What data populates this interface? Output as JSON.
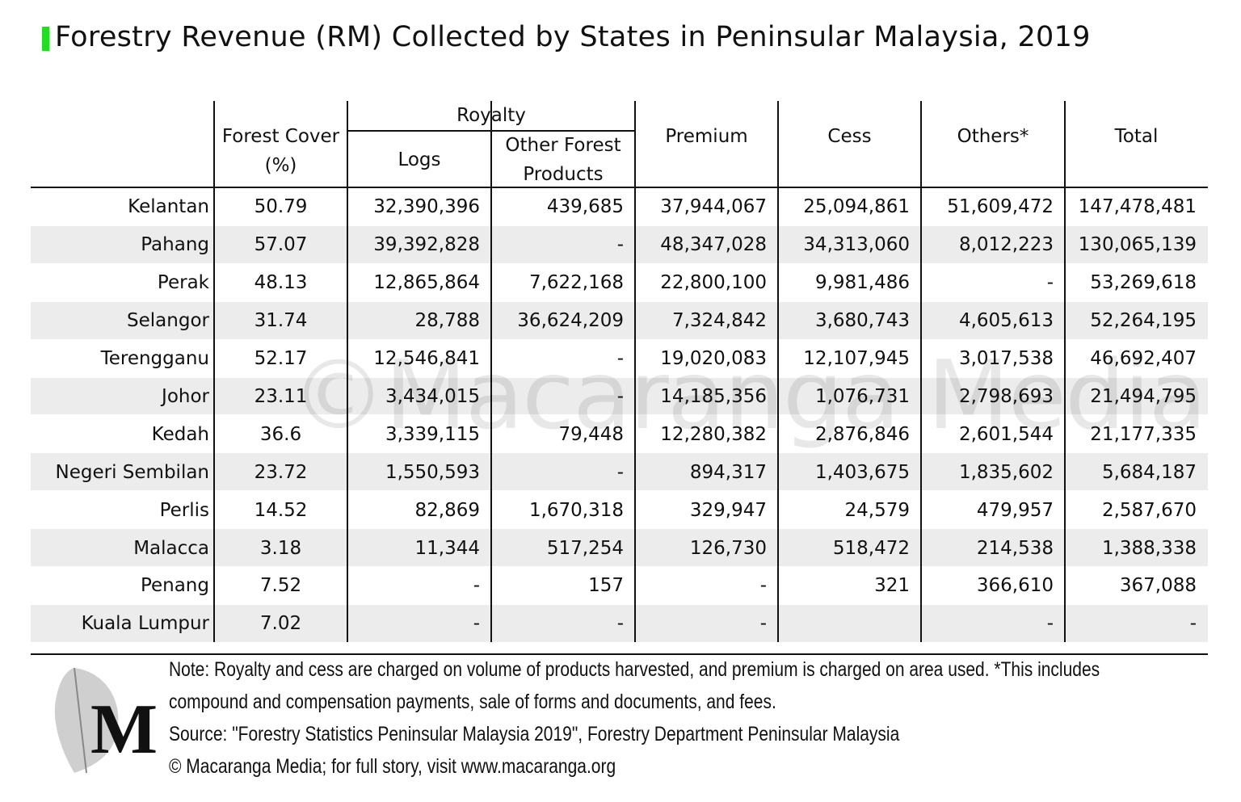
{
  "title": "Forestry Revenue (RM) Collected by States in Peninsular Malaysia, 2019",
  "table": {
    "group_header": "Royalty",
    "columns": [
      "Forest Cover (%)",
      "Logs",
      "Other Forest Products",
      "Premium",
      "Cess",
      "Others*",
      "Total"
    ],
    "rows": [
      [
        "Kelantan",
        "50.79",
        "32,390,396",
        "439,685",
        "37,944,067",
        "25,094,861",
        "51,609,472",
        "147,478,481"
      ],
      [
        "Pahang",
        "57.07",
        "39,392,828",
        "-",
        "48,347,028",
        "34,313,060",
        "8,012,223",
        "130,065,139"
      ],
      [
        "Perak",
        "48.13",
        "12,865,864",
        "7,622,168",
        "22,800,100",
        "9,981,486",
        "-",
        "53,269,618"
      ],
      [
        "Selangor",
        "31.74",
        "28,788",
        "36,624,209",
        "7,324,842",
        "3,680,743",
        "4,605,613",
        "52,264,195"
      ],
      [
        "Terengganu",
        "52.17",
        "12,546,841",
        "-",
        "19,020,083",
        "12,107,945",
        "3,017,538",
        "46,692,407"
      ],
      [
        "Johor",
        "23.11",
        "3,434,015",
        "-",
        "14,185,356",
        "1,076,731",
        "2,798,693",
        "21,494,795"
      ],
      [
        "Kedah",
        "36.6",
        "3,339,115",
        "79,448",
        "12,280,382",
        "2,876,846",
        "2,601,544",
        "21,177,335"
      ],
      [
        "Negeri Sembilan",
        "23.72",
        "1,550,593",
        "-",
        "894,317",
        "1,403,675",
        "1,835,602",
        "5,684,187"
      ],
      [
        "Perlis",
        "14.52",
        "82,869",
        "1,670,318",
        "329,947",
        "24,579",
        "479,957",
        "2,587,670"
      ],
      [
        "Malacca",
        "3.18",
        "11,344",
        "517,254",
        "126,730",
        "518,472",
        "214,538",
        "1,388,338"
      ],
      [
        "Penang",
        "7.52",
        "-",
        "157",
        "-",
        "321",
        "366,610",
        "367,088"
      ],
      [
        "Kuala Lumpur",
        "7.02",
        "-",
        "-",
        "-",
        "",
        "-",
        "-"
      ]
    ]
  },
  "watermark": "©Macaranga Media",
  "footer": {
    "logo": "M",
    "note": "Note: Royalty and cess are charged on volume of products harvested, and premium is charged on area used.  *This includes",
    "note_cont": "compound and compensation payments, sale of forms and documents, and fees.",
    "source": "Source: \"Forestry Statistics Peninsular Malaysia 2019\", Forestry Department Peninsular Malaysia",
    "credit": "© Macaranga Media; for full story, visit www.macaranga.org"
  }
}
